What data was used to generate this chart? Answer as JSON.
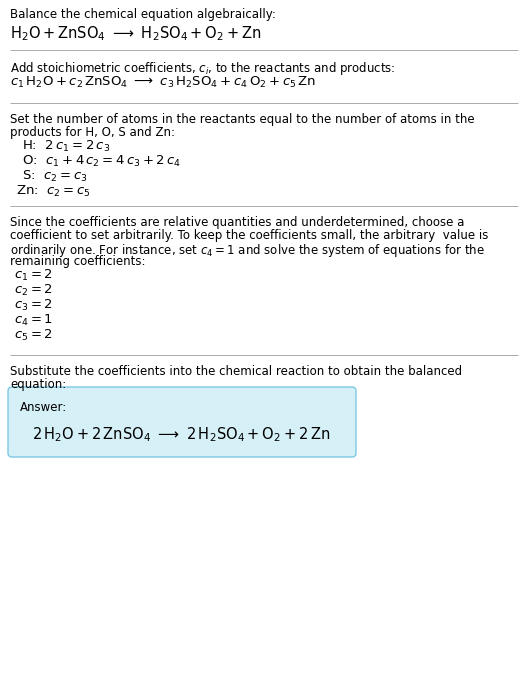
{
  "bg_color": "#ffffff",
  "text_color": "#000000",
  "section1_title": "Balance the chemical equation algebraically:",
  "section2_title_parts": [
    "Add stoichiometric coefficients, ",
    "c",
    "i",
    ", to the reactants and products:"
  ],
  "section3_title": "Set the number of atoms in the reactants equal to the number of atoms in the\nproducts for H, O, S and Zn:",
  "section4_title_line1": "Since the coefficients are relative quantities and underdetermined, choose a",
  "section4_title_line2": "coefficient to set arbitrarily. To keep the coefficients small, the arbitrary  value is",
  "section4_title_line3": "ordinarily one. For instance, set ",
  "section4_title_line3b": " and solve the system of equations for the",
  "section4_title_line4": "remaining coefficients:",
  "section5_title": "Substitute the coefficients into the chemical reaction to obtain the balanced\nequation:",
  "answer_label": "Answer:",
  "answer_box_color": "#d6f0f8",
  "answer_box_border": "#7ec8e3",
  "divider_color": "#aaaaaa",
  "fn": 8.5,
  "feq": 9.5
}
